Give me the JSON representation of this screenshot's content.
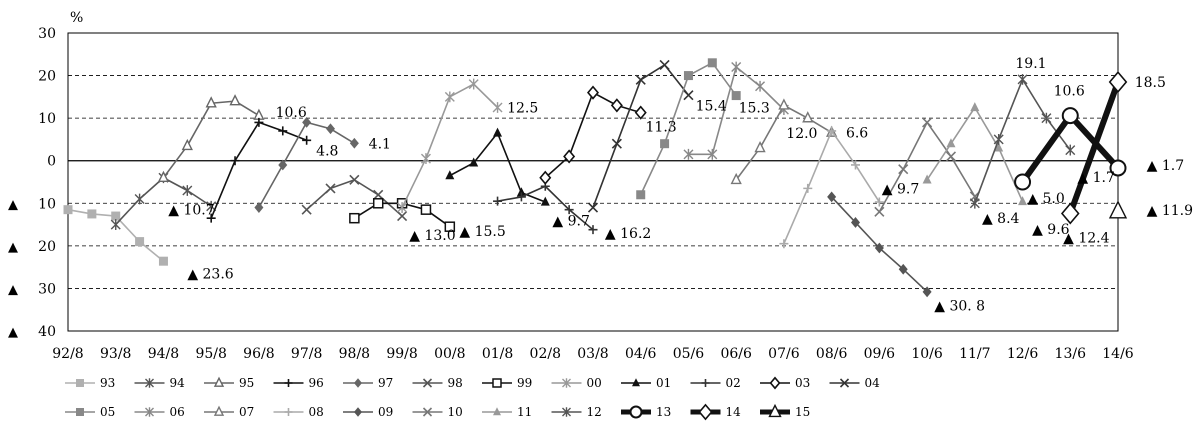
{
  "chart_data": {
    "type": "line",
    "ylabel": "%",
    "ylim": [
      -40,
      30
    ],
    "y_ticks": [
      {
        "value": 30,
        "label": "30",
        "neg": false
      },
      {
        "value": 20,
        "label": "20",
        "neg": false
      },
      {
        "value": 10,
        "label": "10",
        "neg": false
      },
      {
        "value": 0,
        "label": "0",
        "neg": false
      },
      {
        "value": -10,
        "label": "10",
        "neg": true
      },
      {
        "value": -20,
        "label": "20",
        "neg": true
      },
      {
        "value": -30,
        "label": "30",
        "neg": true
      },
      {
        "value": -40,
        "label": "40",
        "neg": true
      }
    ],
    "neg_marker": "▲",
    "categories": [
      "92/8",
      "93/8",
      "94/8",
      "95/8",
      "96/8",
      "97/8",
      "98/8",
      "99/8",
      "00/8",
      "01/8",
      "02/8",
      "03/8",
      "04/6",
      "05/6",
      "06/6",
      "07/6",
      "08/6",
      "09/6",
      "10/6",
      "11/7",
      "12/6",
      "13/6",
      "14/6"
    ],
    "series": [
      {
        "name": "93",
        "color": "#b0b0b0",
        "marker": "square",
        "points": [
          [
            0,
            -11.5
          ],
          [
            0.5,
            -12.5
          ],
          [
            1,
            -13
          ],
          [
            1.5,
            -19
          ],
          [
            2,
            -23.6
          ]
        ]
      },
      {
        "name": "94",
        "color": "#555555",
        "marker": "asterisk",
        "points": [
          [
            1,
            -15
          ],
          [
            1.5,
            -9
          ],
          [
            2,
            -4
          ],
          [
            2.5,
            -7
          ],
          [
            3,
            -10.7
          ]
        ]
      },
      {
        "name": "95",
        "color": "#666666",
        "marker": "triangle",
        "points": [
          [
            2,
            -4
          ],
          [
            2.5,
            3.5
          ],
          [
            3,
            13.5
          ],
          [
            3.5,
            14
          ],
          [
            4,
            10.6
          ]
        ]
      },
      {
        "name": "96",
        "color": "#111111",
        "marker": "plus",
        "points": [
          [
            3,
            -13.5
          ],
          [
            3.5,
            0
          ],
          [
            4,
            9
          ],
          [
            4.5,
            7
          ],
          [
            5,
            4.8
          ]
        ]
      },
      {
        "name": "97",
        "color": "#666666",
        "marker": "diamond",
        "points": [
          [
            4,
            -11
          ],
          [
            4.5,
            -1
          ],
          [
            5,
            9
          ],
          [
            5.5,
            7.5
          ],
          [
            6,
            4.1
          ]
        ]
      },
      {
        "name": "98",
        "color": "#555555",
        "marker": "x",
        "points": [
          [
            5,
            -11.5
          ],
          [
            5.5,
            -6.5
          ],
          [
            6,
            -4.5
          ],
          [
            6.5,
            -8
          ],
          [
            7,
            -13.0
          ]
        ]
      },
      {
        "name": "99",
        "color": "#111111",
        "marker": "square-open",
        "points": [
          [
            6,
            -13.5
          ],
          [
            6.5,
            -10
          ],
          [
            7,
            -10
          ],
          [
            7.5,
            -11.5
          ],
          [
            8,
            -15.5
          ]
        ]
      },
      {
        "name": "00",
        "color": "#999999",
        "marker": "asterisk",
        "points": [
          [
            7,
            -11
          ],
          [
            7.5,
            0.5
          ],
          [
            8,
            15
          ],
          [
            8.5,
            18
          ],
          [
            9,
            12.5
          ]
        ]
      },
      {
        "name": "01",
        "color": "#111111",
        "marker": "triangle-filled",
        "points": [
          [
            8,
            -3.5
          ],
          [
            8.5,
            -0.5
          ],
          [
            9,
            6.5
          ],
          [
            9.5,
            -7.5
          ],
          [
            10,
            -9.7
          ]
        ]
      },
      {
        "name": "02",
        "color": "#333333",
        "marker": "plus",
        "points": [
          [
            9,
            -9.5
          ],
          [
            9.5,
            -8.5
          ],
          [
            10,
            -6
          ],
          [
            10.5,
            -11.5
          ],
          [
            11,
            -16.2
          ]
        ]
      },
      {
        "name": "03",
        "color": "#111111",
        "marker": "diamond-open",
        "points": [
          [
            10,
            -4
          ],
          [
            10.5,
            1
          ],
          [
            11,
            16
          ],
          [
            11.5,
            13
          ],
          [
            12,
            11.3
          ]
        ]
      },
      {
        "name": "04",
        "color": "#333333",
        "marker": "x",
        "points": [
          [
            11,
            -11
          ],
          [
            11.5,
            4
          ],
          [
            12,
            19
          ],
          [
            12.5,
            22.5
          ],
          [
            13,
            15.4
          ]
        ]
      },
      {
        "name": "05",
        "color": "#888888",
        "marker": "square",
        "points": [
          [
            12,
            -8
          ],
          [
            12.5,
            4
          ],
          [
            13,
            20
          ],
          [
            13.5,
            23
          ],
          [
            14,
            15.3
          ]
        ]
      },
      {
        "name": "06",
        "color": "#888888",
        "marker": "asterisk",
        "points": [
          [
            13,
            1.5
          ],
          [
            13.5,
            1.5
          ],
          [
            14,
            22
          ],
          [
            14.5,
            17.5
          ],
          [
            15,
            12.0
          ]
        ]
      },
      {
        "name": "07",
        "color": "#777777",
        "marker": "triangle",
        "points": [
          [
            14,
            -4.5
          ],
          [
            14.5,
            3
          ],
          [
            15,
            13
          ],
          [
            15.5,
            10
          ],
          [
            16,
            6.6
          ]
        ]
      },
      {
        "name": "08",
        "color": "#aaaaaa",
        "marker": "plus",
        "points": [
          [
            15,
            -19.5
          ],
          [
            15.5,
            -6.5
          ],
          [
            16,
            7
          ],
          [
            16.5,
            -1
          ],
          [
            17,
            -9.7
          ]
        ]
      },
      {
        "name": "09",
        "color": "#555555",
        "marker": "diamond",
        "points": [
          [
            16,
            -8.5
          ],
          [
            16.5,
            -14.5
          ],
          [
            17,
            -20.5
          ],
          [
            17.5,
            -25.5
          ],
          [
            18,
            -30.8
          ]
        ]
      },
      {
        "name": "10",
        "color": "#777777",
        "marker": "x",
        "points": [
          [
            17,
            -12
          ],
          [
            17.5,
            -2
          ],
          [
            18,
            9
          ],
          [
            18.5,
            1
          ],
          [
            19,
            -8.4
          ]
        ]
      },
      {
        "name": "11",
        "color": "#999999",
        "marker": "triangle-filled",
        "points": [
          [
            18,
            -4.5
          ],
          [
            18.5,
            4
          ],
          [
            19,
            12.5
          ],
          [
            19.5,
            3
          ],
          [
            20,
            -9.6
          ]
        ]
      },
      {
        "name": "12",
        "color": "#555555",
        "marker": "asterisk",
        "points": [
          [
            19,
            -10
          ],
          [
            19.5,
            5
          ],
          [
            20,
            19.1
          ],
          [
            20.5,
            10
          ],
          [
            21,
            2.5
          ]
        ]
      },
      {
        "name": "13",
        "color": "#111111",
        "marker": "circle-open",
        "bold": true,
        "points": [
          [
            20,
            -5.0
          ],
          [
            21,
            10.6
          ],
          [
            22,
            -1.7
          ]
        ]
      },
      {
        "name": "14",
        "color": "#111111",
        "marker": "diamond-open",
        "bold": true,
        "points": [
          [
            21,
            -12.4
          ],
          [
            22,
            18.5
          ]
        ]
      },
      {
        "name": "15",
        "color": "#111111",
        "marker": "triangle",
        "bold": false,
        "points": [
          [
            22,
            -11.9
          ]
        ]
      }
    ],
    "data_labels": [
      {
        "text": "▲ 10.7",
        "x": 2.1,
        "y": -11.5
      },
      {
        "text": "▲ 23.6",
        "x": 2.5,
        "y": -26.5
      },
      {
        "text": "10.6",
        "x": 4.35,
        "y": 11.5
      },
      {
        "text": "4.8",
        "x": 5.2,
        "y": 2.4
      },
      {
        "text": "4.1",
        "x": 6.3,
        "y": 4.1
      },
      {
        "text": "▲ 13.0",
        "x": 7.15,
        "y": -17.5
      },
      {
        "text": "▲ 15.5",
        "x": 8.2,
        "y": -16.5
      },
      {
        "text": "12.5",
        "x": 9.2,
        "y": 12.5
      },
      {
        "text": "▲ 9.7",
        "x": 10.15,
        "y": -14
      },
      {
        "text": "▲ 16.2",
        "x": 11.25,
        "y": -17
      },
      {
        "text": "11.3",
        "x": 12.1,
        "y": 8
      },
      {
        "text": "15.4",
        "x": 13.15,
        "y": 13
      },
      {
        "text": "15.3",
        "x": 14.05,
        "y": 12.5
      },
      {
        "text": "12.0",
        "x": 15.05,
        "y": 6.5
      },
      {
        "text": "6.6",
        "x": 16.3,
        "y": 6.6
      },
      {
        "text": "▲ 9.7",
        "x": 17.05,
        "y": -6.5
      },
      {
        "text": "▲ 30. 8",
        "x": 18.15,
        "y": -34
      },
      {
        "text": "▲ 8.4",
        "x": 19.15,
        "y": -13.5
      },
      {
        "text": "▲ 9.6",
        "x": 20.2,
        "y": -16
      },
      {
        "text": "19.1",
        "x": 19.85,
        "y": 23
      },
      {
        "text": "▲ 5.0",
        "x": 20.1,
        "y": -8.8
      },
      {
        "text": "▲ 1.7",
        "x": 21.15,
        "y": -3.8
      },
      {
        "text": "10.6",
        "x": 20.65,
        "y": 16.5
      },
      {
        "text": "▲ 12.4",
        "x": 20.85,
        "y": -18
      },
      {
        "text": "18.5",
        "x": 22.35,
        "y": 18.5
      },
      {
        "text": "▲ 1.7",
        "x": 22.6,
        "y": -1
      },
      {
        "text": "▲ 11.9",
        "x": 22.6,
        "y": -11.6
      }
    ]
  }
}
